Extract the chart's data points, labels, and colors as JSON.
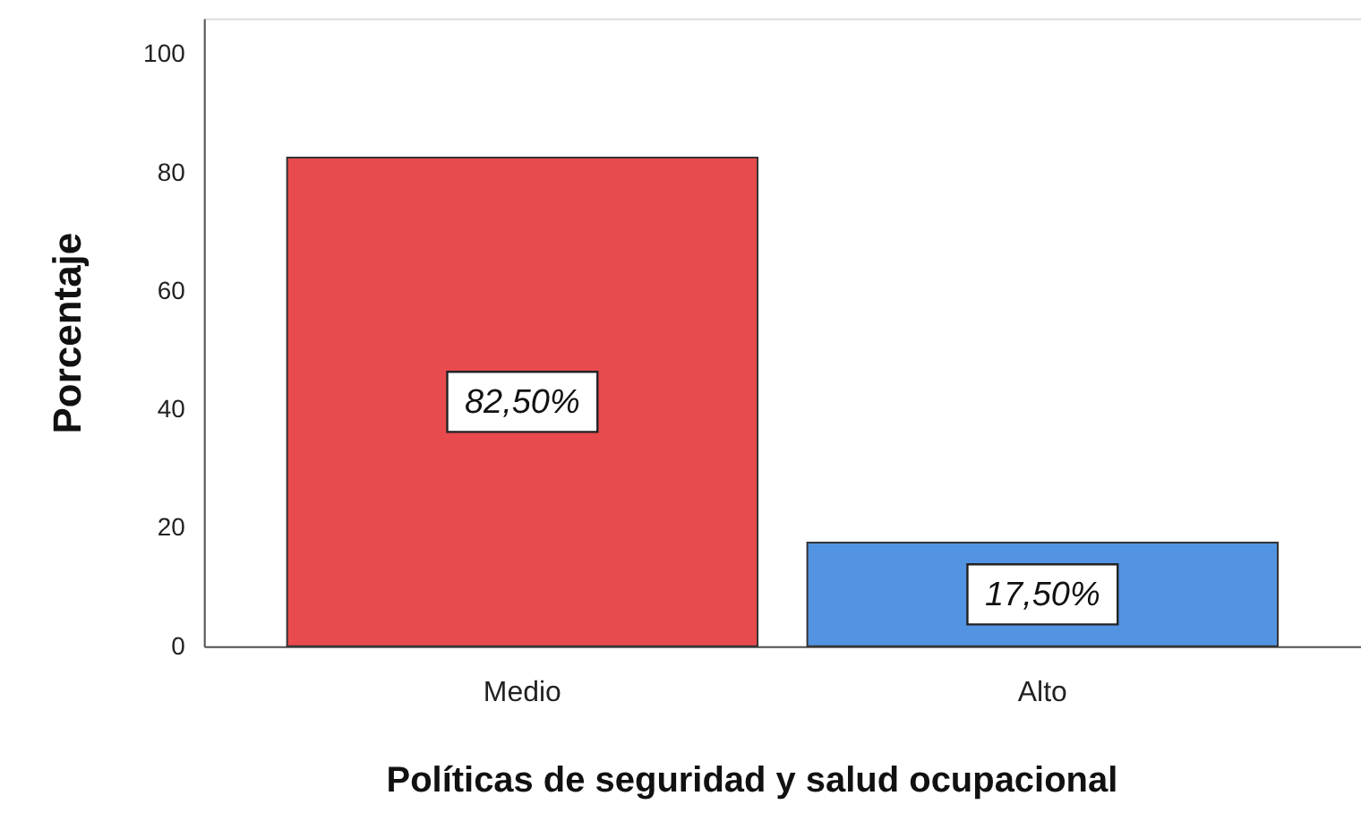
{
  "chart_data": {
    "type": "bar",
    "xlabel": "Políticas de seguridad y salud ocupacional",
    "ylabel": "Porcentaje",
    "categories": [
      "Medio",
      "Alto"
    ],
    "values": [
      82.5,
      17.5
    ],
    "colors": [
      "#e84a4d",
      "#5294e2"
    ],
    "value_labels": [
      "82,50%",
      "17,50%"
    ],
    "ylim": [
      0,
      106
    ],
    "yticks": [
      0,
      20,
      40,
      60,
      80,
      100
    ]
  }
}
